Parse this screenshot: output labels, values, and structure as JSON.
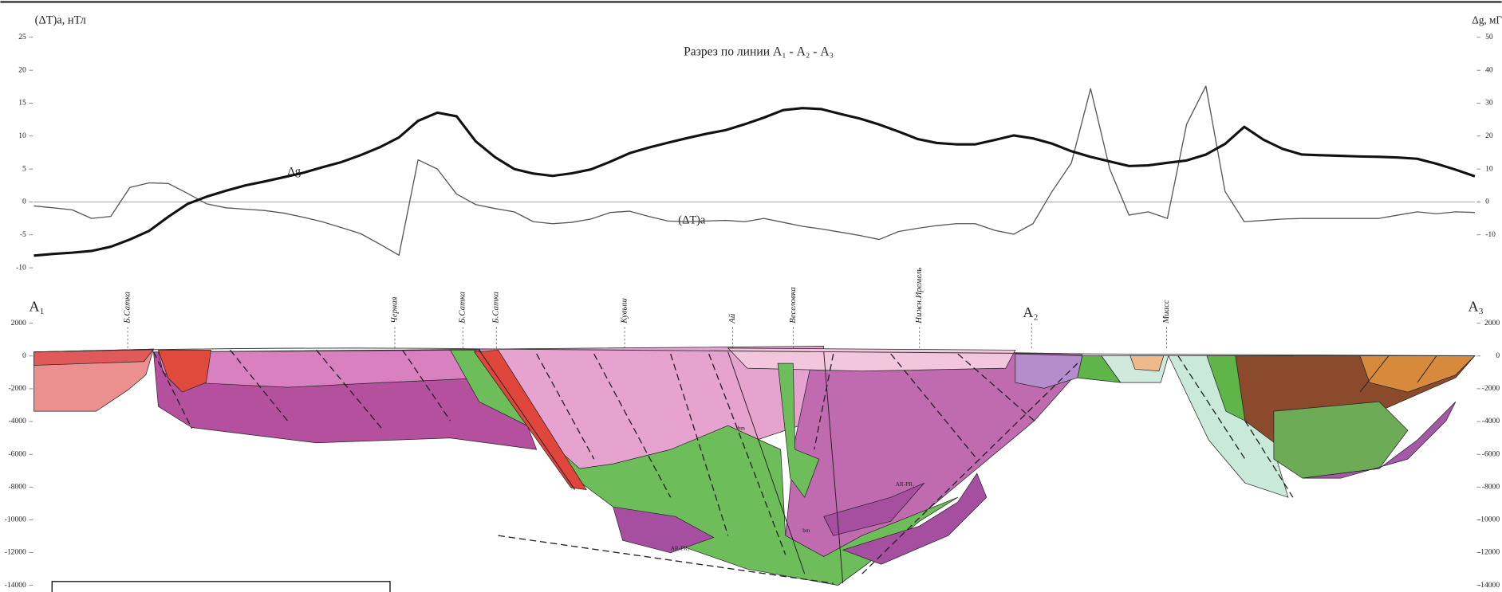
{
  "chart_data": [
    {
      "type": "line",
      "title": "Разрез по линии А₁ - А₂ - А₃",
      "ylabel": "(ΔT)a, нТл",
      "y2label": "Δg, мГ",
      "ylim": [
        -10,
        25
      ],
      "yticks": [
        -10,
        -5,
        0,
        5,
        10,
        15,
        20,
        25
      ],
      "y2lim": [
        -20,
        50
      ],
      "y2ticks": [
        -10,
        0,
        10,
        20,
        30,
        40,
        50
      ],
      "series": [
        {
          "name": "(ΔT)a",
          "color": "#555555",
          "values": [
            -0.6,
            -0.9,
            -1.2,
            -2.5,
            -2.2,
            2.2,
            2.9,
            2.8,
            1.3,
            -0.3,
            -0.9,
            -1.1,
            -1.3,
            -1.7,
            -2.3,
            -3.0,
            -3.9,
            -4.8,
            -6.4,
            -8.1,
            6.4,
            5.0,
            1.2,
            -0.4,
            -1.0,
            -1.5,
            -3.0,
            -3.3,
            -3.1,
            -2.6,
            -1.6,
            -1.4,
            -2.2,
            -2.9,
            -3.0,
            -2.9,
            -2.8,
            -3.0,
            -2.5,
            -3.1,
            -3.7,
            -4.1,
            -4.6,
            -5.1,
            -5.7,
            -4.5,
            -4.0,
            -3.6,
            -3.3,
            -3.3,
            -4.3,
            -4.9,
            -3.3,
            1.6,
            5.9,
            17.2,
            5.0,
            -2.0,
            -1.5,
            -2.5,
            11.8,
            17.6,
            1.6,
            -3.0,
            -2.8,
            -2.6,
            -2.5,
            -2.5,
            -2.5,
            -2.5,
            -2.5,
            -2.0,
            -1.5,
            -1.8,
            -1.5,
            -1.6
          ]
        },
        {
          "name": "Δg",
          "color": "#111111",
          "axis": "y2",
          "values": [
            -16.3,
            -15.8,
            -15.4,
            -14.9,
            -13.6,
            -11.4,
            -8.8,
            -4.5,
            -0.6,
            1.6,
            3.4,
            5.0,
            6.2,
            7.5,
            8.8,
            10.5,
            12.1,
            14.2,
            16.6,
            19.6,
            24.6,
            27.1,
            26,
            18.4,
            13.6,
            10,
            8.6,
            7.9,
            8.7,
            9.9,
            12.2,
            14.8,
            16.5,
            18,
            19.4,
            20.7,
            21.8,
            23.6,
            25.6,
            27.9,
            28.5,
            28.2,
            26.7,
            25.3,
            23.5,
            21.4,
            19.1,
            17.9,
            17.5,
            17.5,
            18.8,
            20.2,
            19.3,
            17.7,
            15.4,
            13.7,
            12.3,
            10.9,
            11.1,
            11.9,
            12.6,
            14.4,
            17.6,
            22.8,
            18.9,
            16.1,
            14.4,
            14.2,
            14.0,
            13.8,
            13.7,
            13.5,
            13.1,
            11.6,
            9.8,
            7.8
          ]
        }
      ]
    },
    {
      "type": "section",
      "ylim": [
        -14000,
        2000
      ],
      "yticks": [
        -14000,
        -12000,
        -10000,
        -8000,
        -6000,
        -4000,
        -2000,
        0,
        2000
      ],
      "profile_points": [
        "А₁",
        "А₂",
        "А₃"
      ],
      "places": [
        "Б.Сатка",
        "Черная",
        "Б.Сатка",
        "Б.Сатка",
        "Кувыш",
        "Ай",
        "Веселовка",
        "Нижн.Иремель",
        "Миасс"
      ]
    }
  ],
  "units": [
    "AR-PR₁",
    "bm"
  ]
}
